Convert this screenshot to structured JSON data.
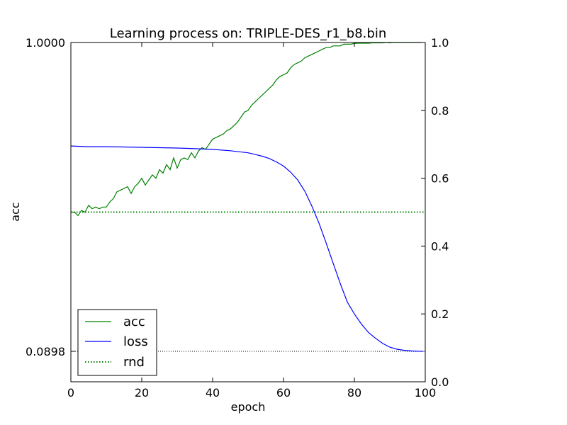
{
  "chart_data": {
    "type": "line",
    "title": "Learning process on: TRIPLE-DES_r1_b8.bin",
    "xlabel": "epoch",
    "ylabel": "acc",
    "xlim": [
      0,
      100
    ],
    "ylim": [
      0,
      1
    ],
    "x_ticks": [
      "0",
      "20",
      "40",
      "60",
      "80",
      "100"
    ],
    "right_y_ticks": [
      "0.0",
      "0.2",
      "0.4",
      "0.6",
      "0.8",
      "1.0"
    ],
    "left_y_ticks": [
      {
        "label": "1.0000",
        "value": 1.0
      },
      {
        "label": "0.0898",
        "value": 0.0898
      }
    ],
    "grid": false,
    "legend_position": "lower-left",
    "series": [
      {
        "name": "acc",
        "color": "#008000",
        "style": "solid",
        "x": [
          0,
          1,
          2,
          3,
          4,
          5,
          6,
          7,
          8,
          9,
          10,
          11,
          12,
          13,
          14,
          15,
          16,
          17,
          18,
          19,
          20,
          21,
          22,
          23,
          24,
          25,
          26,
          27,
          28,
          29,
          30,
          31,
          32,
          33,
          34,
          35,
          36,
          37,
          38,
          39,
          40,
          41,
          42,
          43,
          44,
          45,
          46,
          47,
          48,
          49,
          50,
          51,
          52,
          53,
          54,
          55,
          56,
          57,
          58,
          59,
          60,
          61,
          62,
          63,
          64,
          65,
          66,
          67,
          68,
          69,
          70,
          71,
          72,
          73,
          74,
          75,
          76,
          77,
          78,
          79,
          80,
          81,
          82,
          83,
          84,
          85,
          86,
          87,
          88,
          89,
          90,
          91,
          92,
          93,
          94,
          95,
          96,
          97,
          98,
          99
        ],
        "y": [
          0.5,
          0.5,
          0.49,
          0.505,
          0.5,
          0.52,
          0.51,
          0.515,
          0.51,
          0.515,
          0.515,
          0.53,
          0.54,
          0.56,
          0.565,
          0.57,
          0.575,
          0.555,
          0.575,
          0.585,
          0.6,
          0.58,
          0.595,
          0.61,
          0.6,
          0.625,
          0.615,
          0.64,
          0.625,
          0.66,
          0.63,
          0.655,
          0.66,
          0.655,
          0.675,
          0.66,
          0.68,
          0.69,
          0.685,
          0.7,
          0.715,
          0.72,
          0.725,
          0.73,
          0.74,
          0.745,
          0.755,
          0.765,
          0.78,
          0.795,
          0.8,
          0.815,
          0.825,
          0.835,
          0.845,
          0.855,
          0.865,
          0.875,
          0.89,
          0.9,
          0.905,
          0.91,
          0.925,
          0.935,
          0.94,
          0.945,
          0.955,
          0.96,
          0.965,
          0.97,
          0.975,
          0.98,
          0.985,
          0.985,
          0.99,
          0.99,
          0.99,
          0.995,
          0.995,
          0.995,
          0.997,
          0.998,
          0.998,
          0.998,
          0.998,
          0.999,
          0.999,
          0.999,
          0.999,
          1.0,
          0.999,
          1.0,
          1.0,
          1.0,
          1.0,
          1.0,
          1.0,
          1.0,
          1.0,
          1.0
        ]
      },
      {
        "name": "loss",
        "color": "#0000ff",
        "style": "solid",
        "x": [
          0,
          5,
          10,
          15,
          20,
          25,
          30,
          35,
          40,
          45,
          50,
          52,
          54,
          56,
          58,
          60,
          62,
          64,
          66,
          68,
          70,
          72,
          74,
          76,
          78,
          80,
          82,
          84,
          86,
          88,
          90,
          92,
          94,
          96,
          98,
          99.5
        ],
        "y": [
          0.695,
          0.693,
          0.693,
          0.692,
          0.691,
          0.69,
          0.689,
          0.687,
          0.685,
          0.681,
          0.675,
          0.67,
          0.665,
          0.658,
          0.648,
          0.636,
          0.618,
          0.595,
          0.562,
          0.518,
          0.468,
          0.41,
          0.35,
          0.29,
          0.235,
          0.2,
          0.17,
          0.145,
          0.128,
          0.113,
          0.102,
          0.096,
          0.093,
          0.091,
          0.09,
          0.0898
        ]
      },
      {
        "name": "rnd",
        "color": "#008000",
        "style": "dotted",
        "x": [
          0,
          100
        ],
        "y": [
          0.5,
          0.5
        ]
      }
    ],
    "annotations": [
      {
        "type": "hline",
        "value": 0.0898,
        "style": "dotted",
        "color": "#000000"
      }
    ]
  }
}
